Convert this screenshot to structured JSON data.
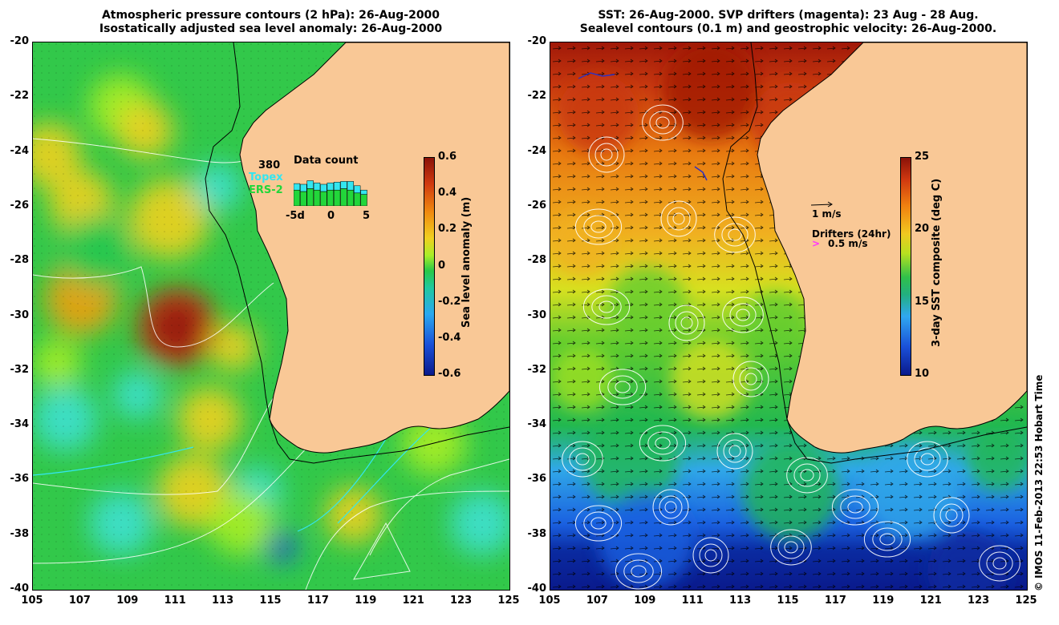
{
  "left_panel": {
    "title_line1": "Atmospheric pressure contours (2 hPa): 26-Aug-2000",
    "title_line2": "Isostatically adjusted sea level anomaly: 26-Aug-2000",
    "colorbar_label": "Sea level anomaly (m)",
    "colorbar_ticks": [
      "0.6",
      "0.4",
      "0.2",
      "0",
      "-0.2",
      "-0.4",
      "-0.6"
    ],
    "inset": {
      "count": "380",
      "topex_label": "Topex",
      "ers_label": "ERS-2",
      "title": "Data count",
      "axis_ticks": [
        "-5d",
        "0",
        "5"
      ],
      "topex_color": "#33e6f0",
      "ers_color": "#22d63a",
      "bars": [
        {
          "topex": 0.45,
          "ers": 0.55
        },
        {
          "topex": 0.5,
          "ers": 0.5
        },
        {
          "topex": 0.55,
          "ers": 0.6
        },
        {
          "topex": 0.5,
          "ers": 0.55
        },
        {
          "topex": 0.5,
          "ers": 0.5
        },
        {
          "topex": 0.5,
          "ers": 0.55
        },
        {
          "topex": 0.55,
          "ers": 0.55
        },
        {
          "topex": 0.5,
          "ers": 0.6
        },
        {
          "topex": 0.6,
          "ers": 0.55
        },
        {
          "topex": 0.5,
          "ers": 0.45
        },
        {
          "topex": 0.3,
          "ers": 0.4
        }
      ]
    }
  },
  "right_panel": {
    "title_line1": "SST: 26-Aug-2000. SVP drifters (magenta): 23 Aug - 28 Aug.",
    "title_line2": "Sealevel contours (0.1 m) and geostrophic velocity: 26-Aug-2000.",
    "colorbar_label": "3-day SST composite (deg C)",
    "colorbar_ticks": [
      "25",
      "20",
      "15",
      "10"
    ],
    "velocity_legend": "1 m/s",
    "drifter_legend_title": "Drifters (24hr)",
    "drifter_legend_speed": "0.5 m/s",
    "drifter_color": "#ff33ff"
  },
  "axes": {
    "y_ticks": [
      "-20",
      "-22",
      "-24",
      "-26",
      "-28",
      "-30",
      "-32",
      "-34",
      "-36",
      "-38",
      "-40"
    ],
    "x_ticks": [
      "105",
      "107",
      "109",
      "111",
      "113",
      "115",
      "117",
      "119",
      "121",
      "123",
      "125"
    ],
    "lon_range": [
      105,
      125
    ],
    "lat_range": [
      -20,
      -40
    ]
  },
  "credit": "© IMOS 11-Feb-2013 22:53 Hobart Time",
  "colors": {
    "land": "#f9c896",
    "sla_palette": [
      "#0a1a8c",
      "#1e8cf0",
      "#3ee0d0",
      "#22c850",
      "#aaee22",
      "#f0dc20",
      "#f09010",
      "#b01808"
    ],
    "sst_palette": [
      "#0a1a8c",
      "#1a6cf0",
      "#3ab0f0",
      "#30c060",
      "#a0e020",
      "#f0c020",
      "#e07010",
      "#a01808"
    ]
  }
}
